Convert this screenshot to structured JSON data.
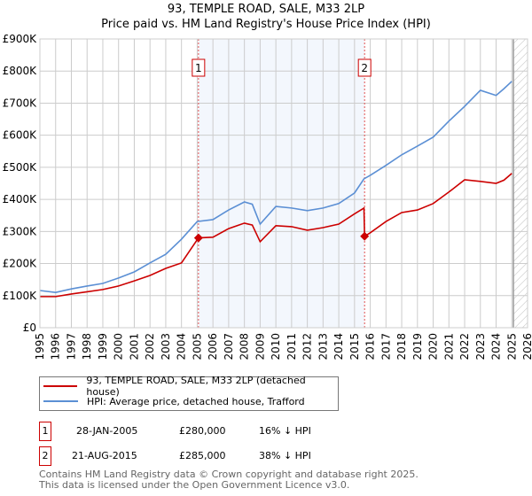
{
  "header": {
    "title": "93, TEMPLE ROAD, SALE, M33 2LP",
    "subtitle": "Price paid vs. HM Land Registry's House Price Index (HPI)"
  },
  "chart_data": {
    "type": "line",
    "title": "93, TEMPLE ROAD, SALE, M33 2LP",
    "subtitle": "Price paid vs. HM Land Registry's House Price Index (HPI)",
    "xlim": [
      1995,
      2026
    ],
    "ylim": [
      0,
      900000
    ],
    "x_ticks": [
      "1995",
      "1996",
      "1997",
      "1998",
      "1999",
      "2000",
      "2001",
      "2002",
      "2003",
      "2004",
      "2005",
      "2006",
      "2007",
      "2008",
      "2009",
      "2010",
      "2011",
      "2012",
      "2013",
      "2014",
      "2015",
      "2016",
      "2017",
      "2018",
      "2019",
      "2020",
      "2021",
      "2022",
      "2023",
      "2024",
      "2025",
      "2026"
    ],
    "y_ticks": [
      "£0",
      "£100K",
      "£200K",
      "£300K",
      "£400K",
      "£500K",
      "£600K",
      "£700K",
      "£800K",
      "£900K"
    ],
    "grid": true,
    "legend_position": "bottom",
    "series": [
      {
        "name": "93, TEMPLE ROAD, SALE, M33 2LP (detached house)",
        "color": "#cc0000",
        "x": [
          1995,
          1996,
          1997,
          1998,
          1999,
          2000,
          2001,
          2002,
          2003,
          2004,
          2005.08,
          2006,
          2007,
          2008,
          2008.5,
          2009,
          2010,
          2011,
          2012,
          2013,
          2014,
          2015,
          2015.6,
          2015.64,
          2016,
          2017,
          2018,
          2019,
          2020,
          2021,
          2022,
          2023,
          2024,
          2024.5,
          2025
        ],
        "y": [
          97000,
          97000,
          105000,
          112000,
          119000,
          130000,
          146000,
          163000,
          185000,
          202000,
          280000,
          282000,
          309000,
          326000,
          320000,
          268000,
          318000,
          315000,
          304000,
          312000,
          323000,
          355000,
          373000,
          285000,
          296000,
          331000,
          359000,
          367000,
          387000,
          423000,
          461000,
          456000,
          450000,
          460000,
          481000
        ]
      },
      {
        "name": "HPI: Average price, detached house, Trafford",
        "color": "#5b8fd4",
        "x": [
          1995,
          1996,
          1997,
          1998,
          1999,
          2000,
          2001,
          2002,
          2003,
          2004,
          2005,
          2006,
          2007,
          2008,
          2008.5,
          2009,
          2010,
          2011,
          2012,
          2013,
          2014,
          2015,
          2015.6,
          2016,
          2017,
          2018,
          2019,
          2020,
          2021,
          2022,
          2023,
          2024,
          2024.5,
          2025
        ],
        "y": [
          116000,
          110000,
          121000,
          130000,
          138000,
          155000,
          174000,
          202000,
          229000,
          276000,
          331000,
          337000,
          367000,
          392000,
          385000,
          323000,
          378000,
          373000,
          365000,
          373000,
          387000,
          420000,
          464000,
          475000,
          506000,
          539000,
          566000,
          594000,
          644000,
          690000,
          740000,
          724000,
          745000,
          768000
        ]
      }
    ],
    "sales": [
      {
        "label": "1",
        "x": 2005.08,
        "price": 280000,
        "date": "28-JAN-2005",
        "price_text": "£280,000",
        "hpi_text": "16% ↓ HPI"
      },
      {
        "label": "2",
        "x": 2015.64,
        "price": 285000,
        "date": "21-AUG-2015",
        "price_text": "£285,000",
        "hpi_text": "38% ↓ HPI"
      }
    ],
    "forecast_start": 2025.1
  },
  "legend": {
    "items": [
      "93, TEMPLE ROAD, SALE, M33 2LP (detached house)",
      "HPI: Average price, detached house, Trafford"
    ]
  },
  "footer": {
    "line1": "Contains HM Land Registry data © Crown copyright and database right 2025.",
    "line2": "This data is licensed under the Open Government Licence v3.0."
  }
}
